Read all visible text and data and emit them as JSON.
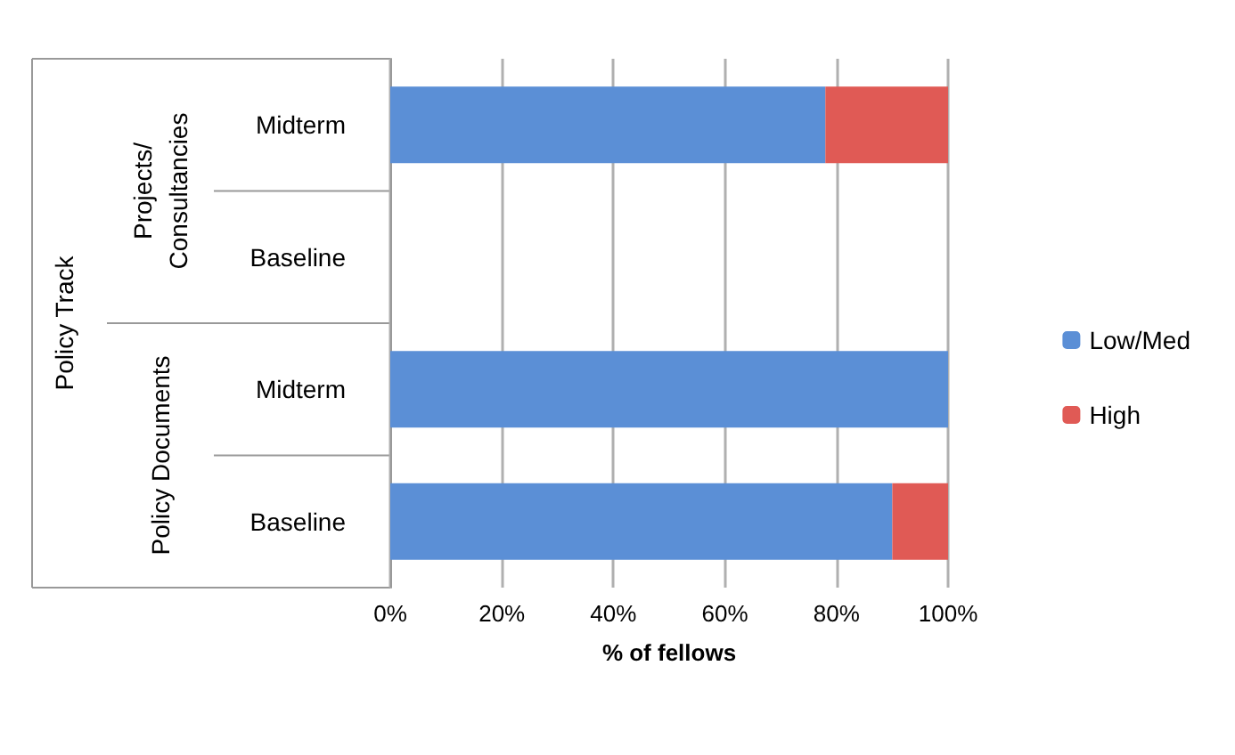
{
  "chart_data": {
    "type": "bar",
    "orientation": "horizontal",
    "stacked": true,
    "categories": [
      "Midterm",
      "Baseline",
      "Midterm",
      "Baseline"
    ],
    "series": [
      {
        "name": "Low/Med",
        "color": "#5b8fd6",
        "values": [
          78,
          0,
          100,
          90
        ]
      },
      {
        "name": "High",
        "color": "#e05a55",
        "values": [
          22,
          0,
          0,
          10
        ]
      }
    ],
    "xlim": [
      0,
      100
    ],
    "xticks": [
      {
        "value": 0,
        "label": "0%"
      },
      {
        "value": 20,
        "label": "20%"
      },
      {
        "value": 40,
        "label": "40%"
      },
      {
        "value": 60,
        "label": "60%"
      },
      {
        "value": 80,
        "label": "80%"
      },
      {
        "value": 100,
        "label": "100%"
      }
    ],
    "xlabel": "% of fellows",
    "annotations": [
      "Policy Track",
      "Projects/\nConsultancies",
      "Policy Documents"
    ],
    "grid": "x",
    "legend": "right"
  }
}
